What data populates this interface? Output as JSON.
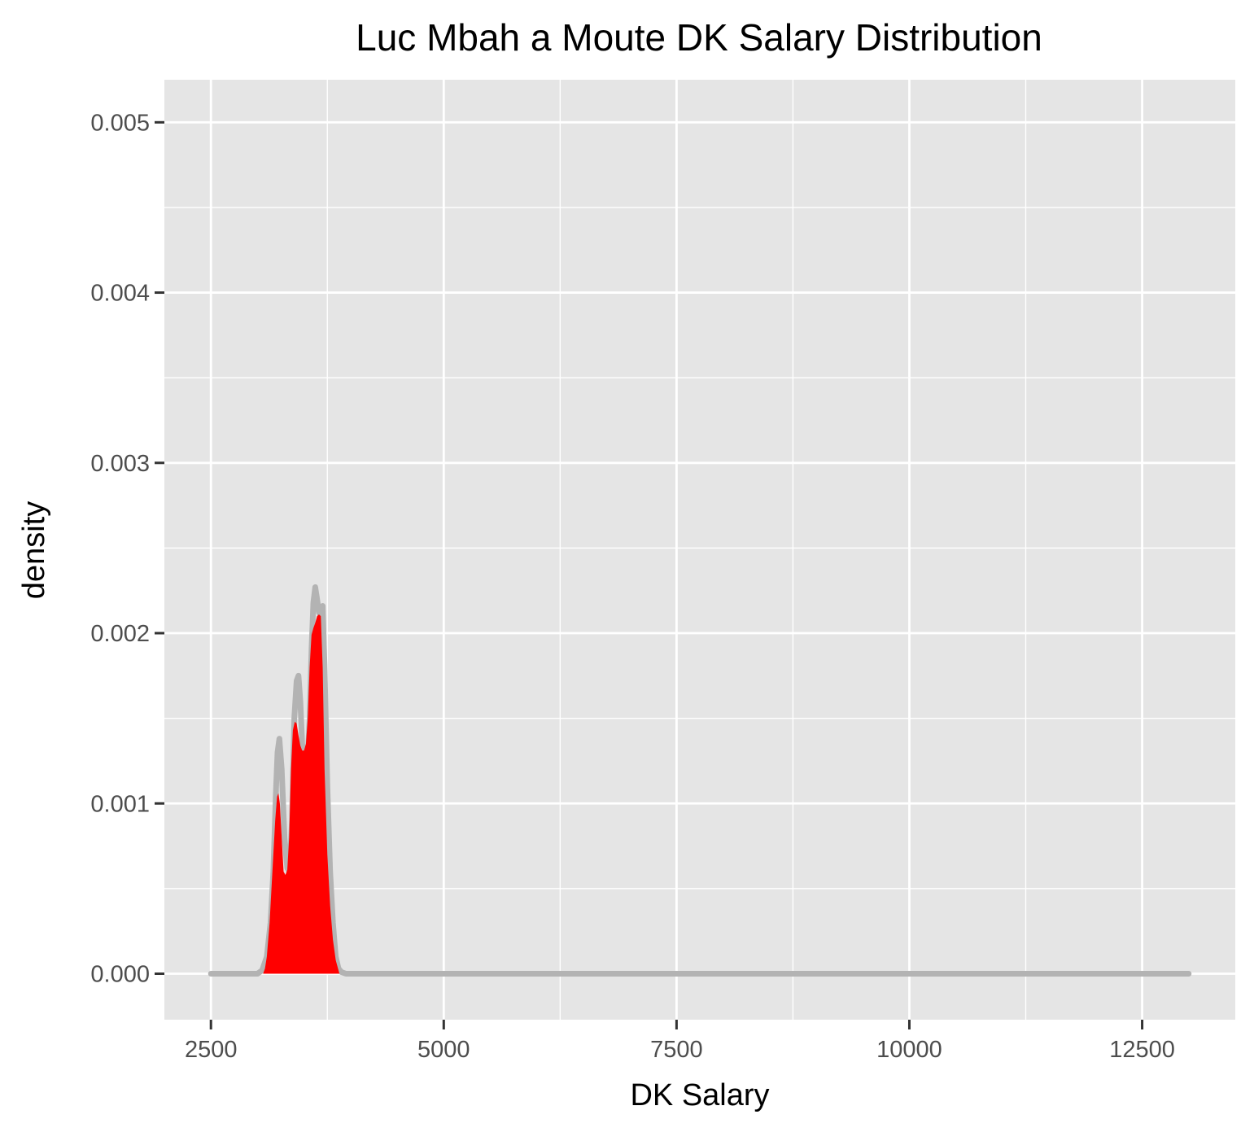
{
  "chart_data": {
    "type": "area",
    "title": "Luc Mbah a Moute DK Salary Distribution",
    "xlabel": "DK Salary",
    "ylabel": "density",
    "xlim": [
      2000,
      13500
    ],
    "ylim": [
      -0.00027,
      0.00525
    ],
    "x_ticks": [
      2500,
      5000,
      7500,
      10000,
      12500
    ],
    "x_tick_labels": [
      "2500",
      "5000",
      "7500",
      "10000",
      "12500"
    ],
    "y_ticks": [
      0,
      0.001,
      0.002,
      0.003,
      0.004,
      0.005
    ],
    "y_tick_labels": [
      "0.000",
      "0.001",
      "0.002",
      "0.003",
      "0.004",
      "0.005"
    ],
    "grid": true,
    "legend": "none",
    "background": "#e5e5e5",
    "gridline_color": "#ffffff",
    "series": [
      {
        "role": "full-range density curve",
        "color": "#b3b3b3",
        "x": [
          2500,
          3000,
          3050,
          3100,
          3140,
          3170,
          3200,
          3215,
          3235,
          3260,
          3290,
          3320,
          3345,
          3370,
          3395,
          3420,
          3440,
          3460,
          3480,
          3510,
          3540,
          3560,
          3580,
          3600,
          3620,
          3640,
          3660,
          3680,
          3700,
          3720,
          3750,
          3780,
          3810,
          3840,
          3870,
          3900,
          3950,
          13000
        ],
        "y": [
          0,
          0,
          2e-05,
          0.0001,
          0.0003,
          0.0006,
          0.0011,
          0.0013,
          0.00138,
          0.0012,
          0.0008,
          0.00062,
          0.0006,
          0.0009,
          0.0015,
          0.00172,
          0.00175,
          0.0016,
          0.00135,
          0.00127,
          0.00128,
          0.0015,
          0.0019,
          0.00218,
          0.00227,
          0.0022,
          0.00212,
          0.00215,
          0.00216,
          0.0018,
          0.0011,
          0.0006,
          0.0003,
          0.0001,
          3e-05,
          1e-05,
          0,
          0
        ]
      },
      {
        "role": "highlighted salary region",
        "color": "#ff0000",
        "x": [
          3060,
          3080,
          3100,
          3130,
          3160,
          3190,
          3210,
          3225,
          3240,
          3260,
          3280,
          3300,
          3320,
          3340,
          3360,
          3380,
          3400,
          3420,
          3440,
          3460,
          3480,
          3500,
          3520,
          3540,
          3560,
          3580,
          3600,
          3620,
          3640,
          3660,
          3680,
          3700,
          3720,
          3750,
          3780,
          3810,
          3840,
          3870,
          3880
        ],
        "y": [
          0,
          3e-05,
          0.0001,
          0.0003,
          0.0006,
          0.0009,
          0.00104,
          0.00106,
          0.001,
          0.0008,
          0.0006,
          0.00058,
          0.00061,
          0.0008,
          0.0012,
          0.00143,
          0.00148,
          0.00147,
          0.0014,
          0.00134,
          0.00131,
          0.00131,
          0.00135,
          0.0015,
          0.0018,
          0.00199,
          0.00203,
          0.00206,
          0.0021,
          0.00211,
          0.0021,
          0.0018,
          0.0012,
          0.0007,
          0.0004,
          0.0002,
          8e-05,
          2e-05,
          0
        ]
      }
    ]
  }
}
